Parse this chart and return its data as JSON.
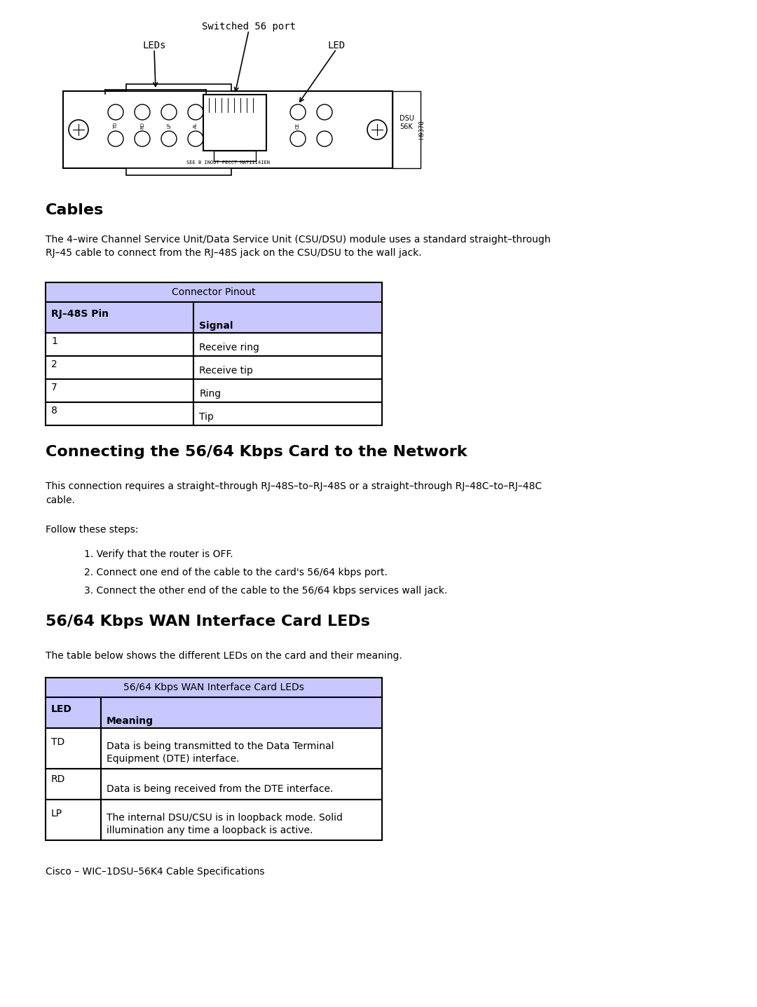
{
  "bg_color": "#ffffff",
  "page_width": 10.8,
  "page_height": 14.37,
  "diagram_label_switched": "Switched 56 port",
  "diagram_label_leds": "LEDs",
  "diagram_label_led": "LED",
  "cables_heading": "Cables",
  "cables_body": "The 4–wire Channel Service Unit/Data Service Unit (CSU/DSU) module uses a standard straight–through\nRJ–45 cable to connect from the RJ–48S jack on the CSU/DSU to the wall jack.",
  "table1_title": "Connector Pinout",
  "table1_col1_header": "RJ–48S Pin",
  "table1_col2_header": "Signal",
  "table1_rows": [
    [
      "1",
      "Receive ring"
    ],
    [
      "2",
      "Receive tip"
    ],
    [
      "7",
      "Ring"
    ],
    [
      "8",
      "Tip"
    ]
  ],
  "connecting_heading": "Connecting the 56/64 Kbps Card to the Network",
  "connecting_body1": "This connection requires a straight–through RJ–48S–to–RJ–48S or a straight–through RJ–48C–to–RJ–48C\ncable.",
  "connecting_body2": "Follow these steps:",
  "connecting_steps": [
    "1. Verify that the router is OFF.",
    "2. Connect one end of the cable to the card's 56/64 kbps port.",
    "3. Connect the other end of the cable to the 56/64 kbps services wall jack."
  ],
  "leds_heading": "56/64 Kbps WAN Interface Card LEDs",
  "leds_body": "The table below shows the different LEDs on the card and their meaning.",
  "table2_title": "56/64 Kbps WAN Interface Card LEDs",
  "table2_col1_header": "LED",
  "table2_col2_header": "Meaning",
  "table2_rows": [
    [
      "TD",
      "Data is being transmitted to the Data Terminal\nEquipment (DTE) interface."
    ],
    [
      "RD",
      "Data is being received from the DTE interface."
    ],
    [
      "LP",
      "The internal DSU/CSU is in loopback mode. Solid\nillumination any time a loopback is active."
    ]
  ],
  "footer": "Cisco – WIC–1DSU–56K4 Cable Specifications",
  "table_header_color": "#c8c8ff",
  "table_border_color": "#000000",
  "text_color": "#000000",
  "heading_color": "#000000"
}
